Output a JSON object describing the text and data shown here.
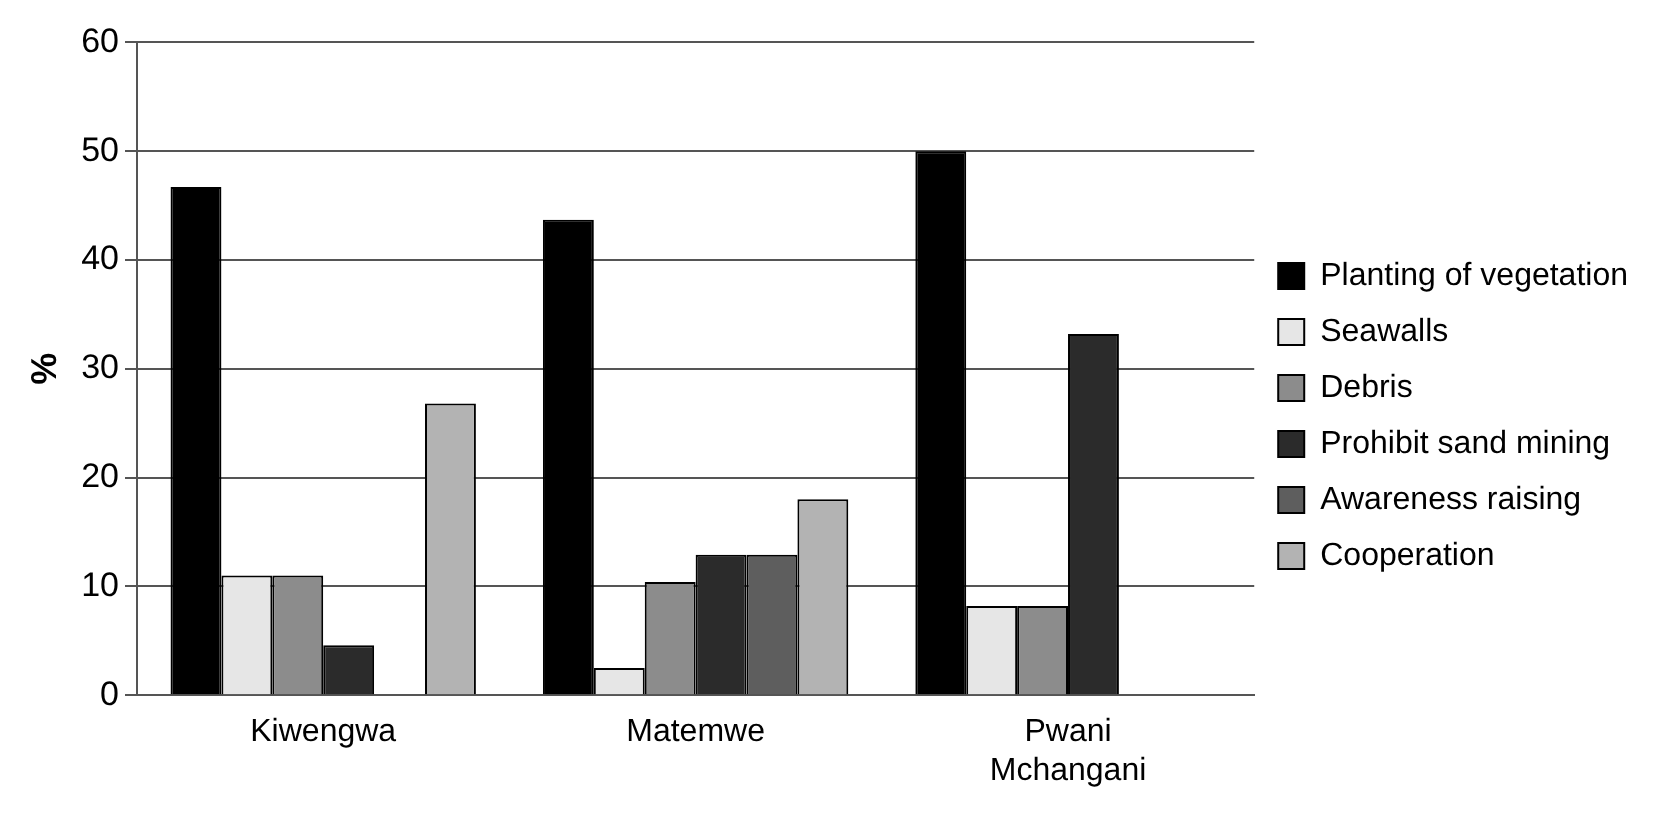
{
  "chart_data": {
    "type": "bar",
    "ylabel": "%",
    "categories": [
      "Kiwengwa",
      "Matemwe",
      "Pwani Mchangani"
    ],
    "series": [
      {
        "name": "Planting of vegetation",
        "color": "#000000",
        "values": [
          46.7,
          43.7,
          50
        ]
      },
      {
        "name": "Seawalls",
        "color": "#e6e6e6",
        "values": [
          11,
          2.5,
          8.2
        ]
      },
      {
        "name": "Debris",
        "color": "#8c8c8c",
        "values": [
          11,
          10.4,
          8.2
        ]
      },
      {
        "name": "Prohibit sand mining",
        "color": "#2b2b2b",
        "values": [
          4.6,
          12.9,
          33.2
        ]
      },
      {
        "name": "Awareness raising",
        "color": "#5e5e5e",
        "values": [
          0,
          12.9,
          0
        ]
      },
      {
        "name": "Cooperation",
        "color": "#b3b3b3",
        "values": [
          26.8,
          18,
          0
        ]
      }
    ],
    "ylim": [
      0,
      60
    ],
    "yticks": [
      0,
      10,
      20,
      30,
      40,
      50,
      60
    ],
    "grid": "y",
    "legend": "right"
  }
}
